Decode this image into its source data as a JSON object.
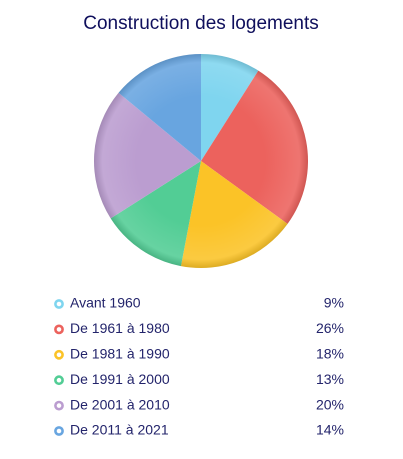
{
  "chart_data": {
    "type": "pie",
    "title": "Construction des logements",
    "categories": [
      "Avant 1960",
      "De 1961 à 1980",
      "De 1981 à 1990",
      "De 1991 à 2000",
      "De 2001 à 2010",
      "De 2011 à 2021"
    ],
    "values": [
      9,
      26,
      18,
      13,
      20,
      14
    ],
    "value_labels": [
      "9%",
      "26%",
      "18%",
      "13%",
      "20%",
      "14%"
    ],
    "colors": [
      "#7fd5ef",
      "#ec625d",
      "#fbc327",
      "#52cd95",
      "#bb9dd0",
      "#68a5e0"
    ]
  }
}
